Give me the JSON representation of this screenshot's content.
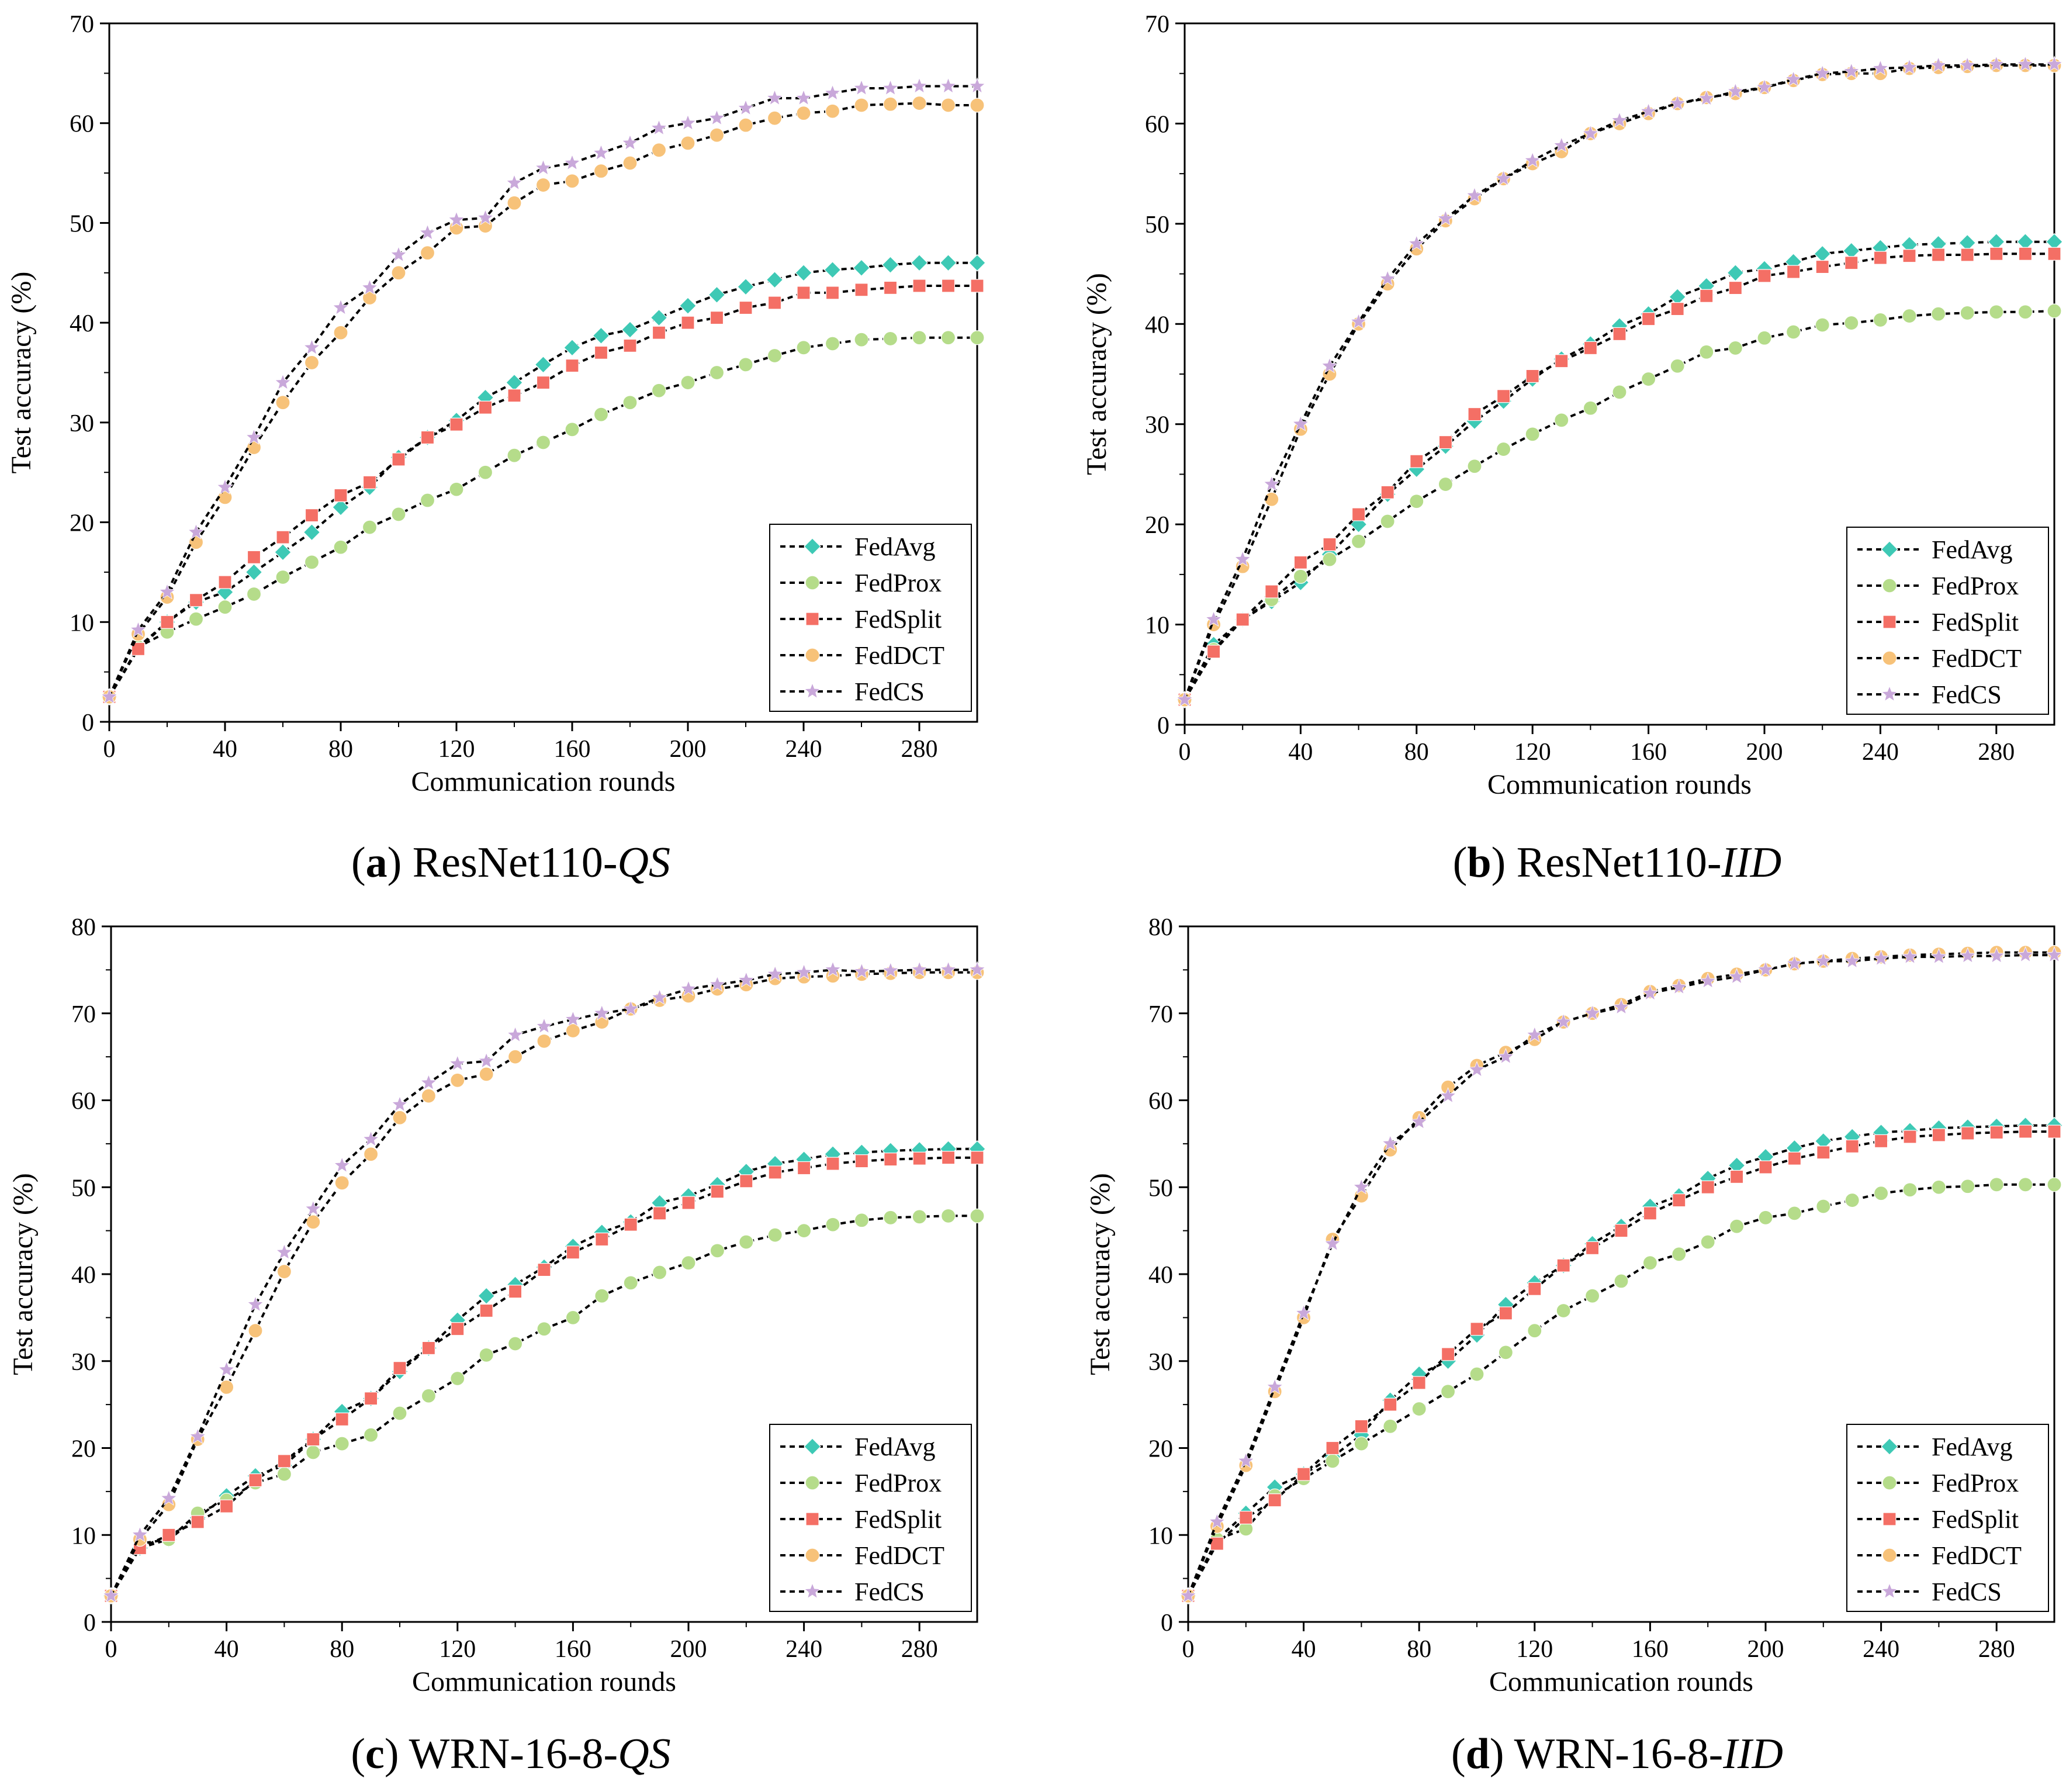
{
  "figure": {
    "description_free": true
  },
  "series_styles": {
    "FedAvg": {
      "color": "#3ec9b5",
      "marker": "diamond"
    },
    "FedProx": {
      "color": "#b5dc8a",
      "marker": "circle"
    },
    "FedSplit": {
      "color": "#f46f65",
      "marker": "square"
    },
    "FedDCT": {
      "color": "#f7c279",
      "marker": "circle"
    },
    "FedCS": {
      "color": "#c9a8da",
      "marker": "star"
    }
  },
  "chart_data": [
    {
      "type": "line",
      "panel": "a",
      "caption": {
        "label": "a",
        "title": "ResNet110-",
        "title_italic": "QS"
      },
      "xlabel": "Communication rounds",
      "ylabel": "Test accuracy (%)",
      "xlim": [
        0,
        300
      ],
      "ylim": [
        0,
        70
      ],
      "xticks": [
        0,
        40,
        80,
        120,
        160,
        200,
        240,
        280
      ],
      "yticks": [
        0,
        10,
        20,
        30,
        40,
        50,
        60,
        70
      ],
      "legend": "bottom-right",
      "legend_entries": [
        "FedAvg",
        "FedProx",
        "FedSplit",
        "FedDCT",
        "FedCS"
      ],
      "x": [
        0,
        10,
        20,
        30,
        40,
        50,
        60,
        70,
        80,
        90,
        100,
        110,
        120,
        130,
        140,
        150,
        160,
        170,
        180,
        190,
        200,
        210,
        220,
        230,
        240,
        250,
        260,
        270,
        280,
        290,
        300
      ],
      "series": [
        {
          "name": "FedAvg",
          "values": [
            2.5,
            7.5,
            10.0,
            12.0,
            13.0,
            15.0,
            17.0,
            19.0,
            21.5,
            23.5,
            26.5,
            28.5,
            30.2,
            32.5,
            34.0,
            35.8,
            37.5,
            38.7,
            39.3,
            40.5,
            41.7,
            42.8,
            43.6,
            44.3,
            45.0,
            45.3,
            45.5,
            45.8,
            46.0,
            46.0,
            46.0
          ]
        },
        {
          "name": "FedProx",
          "values": [
            2.5,
            7.5,
            9.0,
            10.3,
            11.5,
            12.8,
            14.5,
            16.0,
            17.5,
            19.5,
            20.8,
            22.2,
            23.3,
            25.0,
            26.7,
            28.0,
            29.3,
            30.8,
            32.0,
            33.2,
            34.0,
            35.0,
            35.8,
            36.7,
            37.5,
            37.9,
            38.3,
            38.4,
            38.5,
            38.5,
            38.5
          ]
        },
        {
          "name": "FedSplit",
          "values": [
            2.5,
            7.3,
            10.0,
            12.2,
            14.0,
            16.5,
            18.5,
            20.7,
            22.7,
            24.0,
            26.3,
            28.5,
            29.8,
            31.5,
            32.7,
            34.0,
            35.7,
            37.0,
            37.7,
            39.0,
            40.0,
            40.5,
            41.5,
            42.0,
            43.0,
            43.0,
            43.3,
            43.5,
            43.7,
            43.7,
            43.7
          ]
        },
        {
          "name": "FedDCT",
          "values": [
            2.5,
            8.8,
            12.5,
            18.0,
            22.5,
            27.5,
            32.0,
            36.0,
            39.0,
            42.5,
            45.0,
            47.0,
            49.5,
            49.7,
            52.0,
            53.8,
            54.2,
            55.2,
            56.0,
            57.3,
            58.0,
            58.8,
            59.8,
            60.5,
            61.0,
            61.2,
            61.8,
            61.9,
            62.0,
            61.8,
            61.8
          ]
        },
        {
          "name": "FedCS",
          "values": [
            2.5,
            9.2,
            13.0,
            19.0,
            23.5,
            28.5,
            34.0,
            37.5,
            41.5,
            43.5,
            46.8,
            49.0,
            50.3,
            50.5,
            54.0,
            55.5,
            56.0,
            57.0,
            58.0,
            59.5,
            60.0,
            60.5,
            61.5,
            62.5,
            62.5,
            63.0,
            63.5,
            63.5,
            63.7,
            63.7,
            63.7
          ]
        }
      ]
    },
    {
      "type": "line",
      "panel": "b",
      "caption": {
        "label": "b",
        "title": "ResNet110-",
        "title_italic": "IID"
      },
      "xlabel": "Communication rounds",
      "ylabel": "Test accuracy (%)",
      "xlim": [
        0,
        300
      ],
      "ylim": [
        0,
        70
      ],
      "xticks": [
        0,
        40,
        80,
        120,
        160,
        200,
        240,
        280
      ],
      "yticks": [
        0,
        10,
        20,
        30,
        40,
        50,
        60,
        70
      ],
      "legend": "bottom-right",
      "legend_entries": [
        "FedAvg",
        "FedProx",
        "FedSplit",
        "FedDCT",
        "FedCS"
      ],
      "x": [
        0,
        10,
        20,
        30,
        40,
        50,
        60,
        70,
        80,
        90,
        100,
        110,
        120,
        130,
        140,
        150,
        160,
        170,
        180,
        190,
        200,
        210,
        220,
        230,
        240,
        250,
        260,
        270,
        280,
        290,
        300
      ],
      "series": [
        {
          "name": "FedAvg",
          "values": [
            2.5,
            8.0,
            10.5,
            12.3,
            14.2,
            17.0,
            20.0,
            23.0,
            25.5,
            27.8,
            30.3,
            32.3,
            34.5,
            36.5,
            38.0,
            39.8,
            41.0,
            42.7,
            43.8,
            45.1,
            45.5,
            46.2,
            47.0,
            47.3,
            47.6,
            47.9,
            48.0,
            48.1,
            48.2,
            48.2,
            48.2
          ]
        },
        {
          "name": "FedProx",
          "values": [
            2.5,
            7.5,
            10.5,
            12.5,
            14.8,
            16.5,
            18.3,
            20.3,
            22.3,
            24.0,
            25.8,
            27.5,
            29.0,
            30.4,
            31.6,
            33.2,
            34.5,
            35.8,
            37.2,
            37.6,
            38.6,
            39.2,
            39.9,
            40.1,
            40.4,
            40.8,
            41.0,
            41.1,
            41.2,
            41.2,
            41.3
          ]
        },
        {
          "name": "FedSplit",
          "values": [
            2.5,
            7.3,
            10.5,
            13.3,
            16.2,
            18.0,
            21.0,
            23.2,
            26.3,
            28.2,
            31.0,
            32.8,
            34.8,
            36.3,
            37.6,
            39.0,
            40.5,
            41.5,
            42.8,
            43.6,
            44.8,
            45.2,
            45.7,
            46.1,
            46.6,
            46.8,
            46.9,
            46.9,
            47.0,
            47.0,
            47.0
          ]
        },
        {
          "name": "FedDCT",
          "values": [
            2.5,
            10.0,
            15.8,
            22.5,
            29.5,
            35.0,
            40.0,
            44.0,
            47.5,
            50.3,
            52.5,
            54.5,
            56.0,
            57.2,
            59.0,
            60.0,
            61.0,
            62.0,
            62.6,
            63.0,
            63.6,
            64.3,
            64.9,
            65.0,
            65.0,
            65.5,
            65.6,
            65.7,
            65.8,
            65.8,
            65.8
          ]
        },
        {
          "name": "FedCS",
          "values": [
            2.5,
            10.5,
            16.5,
            24.0,
            30.0,
            35.8,
            40.2,
            44.5,
            48.0,
            50.5,
            52.8,
            54.5,
            56.3,
            57.8,
            59.0,
            60.3,
            61.2,
            62.0,
            62.5,
            63.2,
            63.6,
            64.4,
            65.0,
            65.2,
            65.5,
            65.6,
            65.8,
            65.8,
            65.9,
            65.9,
            65.9
          ]
        }
      ]
    },
    {
      "type": "line",
      "panel": "c",
      "caption": {
        "label": "c",
        "title": "WRN-16-8-",
        "title_italic": "QS"
      },
      "xlabel": "Communication rounds",
      "ylabel": "Test accuracy (%)",
      "xlim": [
        0,
        300
      ],
      "ylim": [
        0,
        80
      ],
      "xticks": [
        0,
        40,
        80,
        120,
        160,
        200,
        240,
        280
      ],
      "yticks": [
        0,
        10,
        20,
        30,
        40,
        50,
        60,
        70,
        80
      ],
      "legend": "bottom-right",
      "legend_entries": [
        "FedAvg",
        "FedProx",
        "FedSplit",
        "FedDCT",
        "FedCS"
      ],
      "x": [
        0,
        10,
        20,
        30,
        40,
        50,
        60,
        70,
        80,
        90,
        100,
        110,
        120,
        130,
        140,
        150,
        160,
        170,
        180,
        190,
        200,
        210,
        220,
        230,
        240,
        250,
        260,
        270,
        280,
        290,
        300
      ],
      "series": [
        {
          "name": "FedAvg",
          "values": [
            3.0,
            8.5,
            9.5,
            12.0,
            14.5,
            16.8,
            18.0,
            21.0,
            24.2,
            25.7,
            28.8,
            31.5,
            34.7,
            37.5,
            38.8,
            40.8,
            43.2,
            44.8,
            46.0,
            48.2,
            49.0,
            50.3,
            51.8,
            52.7,
            53.2,
            53.8,
            54.0,
            54.2,
            54.3,
            54.4,
            54.4
          ]
        },
        {
          "name": "FedProx",
          "values": [
            3.0,
            9.0,
            9.5,
            12.5,
            14.0,
            16.0,
            17.0,
            19.5,
            20.5,
            21.5,
            24.0,
            26.0,
            28.0,
            30.7,
            32.0,
            33.7,
            35.0,
            37.5,
            39.0,
            40.2,
            41.3,
            42.7,
            43.7,
            44.5,
            45.0,
            45.7,
            46.2,
            46.5,
            46.6,
            46.7,
            46.7
          ]
        },
        {
          "name": "FedSplit",
          "values": [
            3.0,
            8.5,
            10.0,
            11.5,
            13.3,
            16.3,
            18.5,
            21.0,
            23.3,
            25.7,
            29.2,
            31.5,
            33.7,
            35.8,
            38.0,
            40.5,
            42.5,
            44.0,
            45.7,
            47.0,
            48.2,
            49.5,
            50.7,
            51.7,
            52.2,
            52.7,
            53.0,
            53.2,
            53.3,
            53.4,
            53.4
          ]
        },
        {
          "name": "FedDCT",
          "values": [
            3.0,
            9.5,
            13.5,
            21.0,
            27.0,
            33.5,
            40.3,
            46.0,
            50.5,
            53.8,
            58.0,
            60.5,
            62.3,
            63.0,
            65.0,
            66.8,
            68.0,
            69.0,
            70.5,
            71.5,
            72.0,
            72.8,
            73.3,
            74.0,
            74.2,
            74.3,
            74.5,
            74.6,
            74.7,
            74.7,
            74.7
          ]
        },
        {
          "name": "FedCS",
          "values": [
            3.0,
            10.0,
            14.2,
            21.3,
            29.0,
            36.5,
            42.5,
            47.5,
            52.5,
            55.5,
            59.5,
            62.0,
            64.2,
            64.5,
            67.5,
            68.5,
            69.3,
            70.0,
            70.5,
            71.8,
            72.8,
            73.3,
            73.8,
            74.5,
            74.7,
            75.0,
            74.8,
            74.9,
            75.0,
            75.0,
            75.0
          ]
        }
      ]
    },
    {
      "type": "line",
      "panel": "d",
      "caption": {
        "label": "d",
        "title": "WRN-16-8-",
        "title_italic": "IID"
      },
      "xlabel": "Communication rounds",
      "ylabel": "Test accuracy (%)",
      "xlim": [
        0,
        300
      ],
      "ylim": [
        0,
        80
      ],
      "xticks": [
        0,
        40,
        80,
        120,
        160,
        200,
        240,
        280
      ],
      "yticks": [
        0,
        10,
        20,
        30,
        40,
        50,
        60,
        70,
        80
      ],
      "legend": "bottom-right",
      "legend_entries": [
        "FedAvg",
        "FedProx",
        "FedSplit",
        "FedDCT",
        "FedCS"
      ],
      "x": [
        0,
        10,
        20,
        30,
        40,
        50,
        60,
        70,
        80,
        90,
        100,
        110,
        120,
        130,
        140,
        150,
        160,
        170,
        180,
        190,
        200,
        210,
        220,
        230,
        240,
        250,
        260,
        270,
        280,
        290,
        300
      ],
      "series": [
        {
          "name": "FedAvg",
          "values": [
            3.0,
            9.5,
            12.5,
            15.5,
            17.0,
            19.0,
            21.5,
            25.5,
            28.5,
            30.0,
            33.0,
            36.5,
            39.0,
            41.0,
            43.5,
            45.5,
            47.8,
            49.0,
            51.0,
            52.5,
            53.5,
            54.5,
            55.3,
            55.8,
            56.3,
            56.5,
            56.8,
            56.9,
            57.0,
            57.1,
            57.1
          ]
        },
        {
          "name": "FedProx",
          "values": [
            3.0,
            9.5,
            10.7,
            14.5,
            16.5,
            18.5,
            20.5,
            22.5,
            24.5,
            26.5,
            28.5,
            31.0,
            33.5,
            35.8,
            37.5,
            39.2,
            41.3,
            42.3,
            43.7,
            45.5,
            46.5,
            47.0,
            47.8,
            48.5,
            49.3,
            49.7,
            50.0,
            50.1,
            50.3,
            50.3,
            50.3
          ]
        },
        {
          "name": "FedSplit",
          "values": [
            3.0,
            9.0,
            12.0,
            14.0,
            17.0,
            20.0,
            22.5,
            25.0,
            27.5,
            30.8,
            33.7,
            35.5,
            38.3,
            41.0,
            43.0,
            45.0,
            47.0,
            48.5,
            50.0,
            51.2,
            52.3,
            53.3,
            54.0,
            54.7,
            55.3,
            55.8,
            56.0,
            56.2,
            56.3,
            56.4,
            56.4
          ]
        },
        {
          "name": "FedDCT",
          "values": [
            3.0,
            11.0,
            18.0,
            26.5,
            35.0,
            44.0,
            49.0,
            54.3,
            58.0,
            61.5,
            64.0,
            65.5,
            67.0,
            69.0,
            70.0,
            71.0,
            72.5,
            73.2,
            74.0,
            74.5,
            75.0,
            75.7,
            76.0,
            76.3,
            76.5,
            76.7,
            76.8,
            76.9,
            77.0,
            77.0,
            77.0
          ]
        },
        {
          "name": "FedCS",
          "values": [
            3.0,
            11.5,
            18.5,
            27.0,
            35.5,
            43.5,
            50.0,
            55.0,
            57.5,
            60.5,
            63.5,
            65.0,
            67.5,
            69.0,
            70.0,
            70.7,
            72.3,
            73.0,
            73.7,
            74.2,
            75.0,
            75.7,
            76.0,
            76.0,
            76.3,
            76.5,
            76.5,
            76.6,
            76.6,
            76.7,
            76.7
          ]
        }
      ]
    }
  ]
}
